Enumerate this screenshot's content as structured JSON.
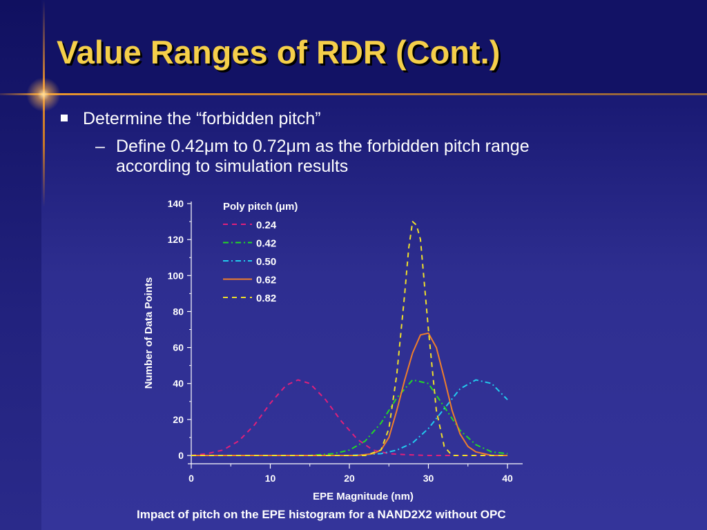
{
  "slide": {
    "title": "Value Ranges of RDR (Cont.)",
    "bullet1": "Determine the “forbidden pitch”",
    "bullet2_marker": "–",
    "bullet2_line1": "Define 0.42μm to 0.72μm as the forbidden pitch range",
    "bullet2_line2": "according to simulation results",
    "caption": "Impact of pitch on the EPE histogram for a NAND2X2 without OPC"
  },
  "colors": {
    "title": "#f5cf4a",
    "background": "#2a2a8c",
    "accent_line": "#e8952f"
  },
  "chart_data": {
    "type": "line",
    "xlabel": "EPE Magnitude (nm)",
    "ylabel": "Number of Data Points",
    "xlim": [
      0,
      40
    ],
    "ylim": [
      0,
      140
    ],
    "xticks": [
      0,
      10,
      20,
      30,
      40
    ],
    "yticks": [
      0,
      20,
      40,
      60,
      80,
      100,
      120,
      140
    ],
    "grid": false,
    "legend_title": "Poly pitch (μm)",
    "legend_position": "top-left",
    "series": [
      {
        "name": "0.24",
        "color": "#e0207a",
        "dash": "dash",
        "x": [
          0,
          2,
          4,
          6,
          8,
          10,
          12,
          13.5,
          15,
          17,
          19,
          21,
          23,
          25,
          27,
          30,
          35,
          40
        ],
        "y": [
          0,
          1,
          3,
          8,
          17,
          29,
          39,
          42,
          40,
          31,
          19,
          9,
          3,
          1,
          0.5,
          0,
          0,
          0
        ]
      },
      {
        "name": "0.42",
        "color": "#22dd22",
        "dash": "dashdot",
        "x": [
          0,
          15,
          18,
          20,
          22,
          24,
          26,
          28,
          30,
          32,
          34,
          36,
          38,
          40
        ],
        "y": [
          0,
          0,
          1,
          3,
          8,
          18,
          32,
          42,
          40,
          27,
          14,
          6,
          2,
          1
        ]
      },
      {
        "name": "0.50",
        "color": "#22ccee",
        "dash": "dashdot",
        "x": [
          0,
          20,
          22,
          24,
          26,
          28,
          30,
          32,
          34,
          36,
          38,
          40
        ],
        "y": [
          0,
          0,
          0.5,
          1,
          3,
          7,
          15,
          26,
          37,
          42,
          40,
          31
        ]
      },
      {
        "name": "0.62",
        "color": "#f07f2a",
        "dash": "solid",
        "x": [
          0,
          21,
          22,
          23,
          24,
          25,
          26,
          27,
          28,
          29,
          30,
          31,
          32,
          33,
          34,
          35,
          36,
          37,
          38,
          40
        ],
        "y": [
          0,
          0,
          0.5,
          1,
          3,
          10,
          25,
          42,
          57,
          67,
          68,
          60,
          43,
          25,
          12,
          5,
          2,
          1,
          0,
          0
        ]
      },
      {
        "name": "0.82",
        "color": "#f0e02a",
        "dash": "dash",
        "x": [
          0,
          22,
          24,
          25,
          26,
          27,
          27.5,
          28,
          28.5,
          29,
          30,
          31,
          32,
          33,
          34,
          40
        ],
        "y": [
          0,
          0,
          3,
          15,
          45,
          90,
          115,
          130,
          128,
          120,
          70,
          25,
          5,
          0,
          0,
          0
        ]
      }
    ]
  }
}
